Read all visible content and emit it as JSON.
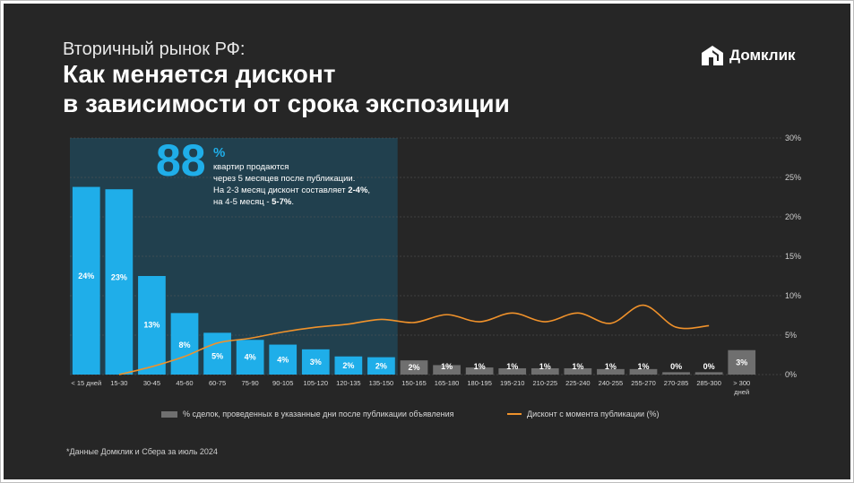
{
  "header": {
    "subtitle": "Вторичный рынок РФ:",
    "title_line1": "Как меняется дисконт",
    "title_line2": "в зависимости от срока экспозиции"
  },
  "brand": {
    "name": "Домклик",
    "icon": "house-logo-icon"
  },
  "callout": {
    "big_number": "88",
    "percent_sign": "%",
    "line1": "квартир продаются",
    "line2": "через 5 месяцев после публикации.",
    "line3_prefix": "На 2-3 месяц дисконт составляет ",
    "line3_bold": "2-4%",
    "line3_suffix": ",",
    "line4_prefix": "на 4-5 месяц - ",
    "line4_bold": "5-7%",
    "line4_suffix": "."
  },
  "legend": {
    "bars": "% сделок, проведенных в указанные дни после публикации объявления",
    "line": "Дисконт с момента публикации (%)"
  },
  "footnote": "*Данные Домклик и Сбера за июль 2024",
  "colors": {
    "background": "#262626",
    "bar_highlight": "#1faee9",
    "bar_muted": "#6f6f6f",
    "highlight_region": "#21404e",
    "line": "#f0922b",
    "gridline": "#5a5a5a"
  },
  "chart_data": {
    "type": "bar",
    "categories": [
      "< 15 дней",
      "15-30",
      "30-45",
      "45-60",
      "60-75",
      "75-90",
      "90-105",
      "105-120",
      "120-135",
      "135-150",
      "150-165",
      "165-180",
      "180-195",
      "195-210",
      "210-225",
      "225-240",
      "240-255",
      "255-270",
      "270-285",
      "285-300",
      "> 300 дней"
    ],
    "highlighted_count": 10,
    "series": [
      {
        "kind": "bar",
        "values": [
          23.8,
          23.5,
          12.5,
          7.8,
          5.3,
          4.4,
          3.8,
          3.2,
          2.3,
          2.2,
          1.8,
          1.2,
          0.9,
          0.8,
          0.8,
          0.8,
          0.7,
          0.7,
          0.3,
          0.3,
          3.1
        ],
        "labels": [
          "24%",
          "23%",
          "13%",
          "8%",
          "5%",
          "4%",
          "4%",
          "3%",
          "2%",
          "2%",
          "2%",
          "1%",
          "1%",
          "1%",
          "1%",
          "1%",
          "1%",
          "1%",
          "0%",
          "0%",
          "3%"
        ]
      },
      {
        "kind": "line",
        "values": [
          null,
          0,
          1.0,
          2.3,
          4.0,
          4.6,
          5.4,
          6.0,
          6.4,
          7.0,
          6.6,
          7.6,
          6.7,
          7.8,
          6.7,
          7.8,
          6.5,
          8.8,
          6.0,
          6.2,
          null
        ]
      }
    ],
    "xlabel": "",
    "ylabel": "",
    "ylim": [
      0,
      30
    ],
    "yticks": [
      "0%",
      "5%",
      "10%",
      "15%",
      "20%",
      "25%",
      "30%"
    ],
    "y_axis_position": "right",
    "grid": true
  }
}
